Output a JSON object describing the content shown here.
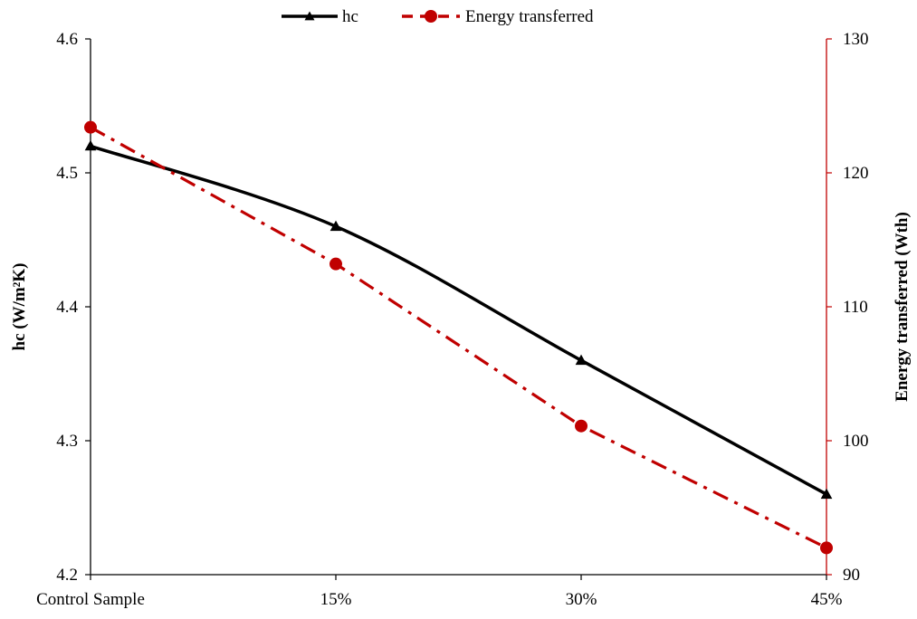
{
  "chart_data": {
    "type": "line",
    "title": "",
    "categories": [
      "Control Sample",
      "15%",
      "30%",
      "45%"
    ],
    "xlabel": "",
    "y_left": {
      "label": "hc (W/m²K)",
      "lim": [
        4.2,
        4.6
      ],
      "ticks": [
        "4.2",
        "4.3",
        "4.4",
        "4.5",
        "4.6"
      ],
      "tick_values": [
        4.2,
        4.3,
        4.4,
        4.5,
        4.6
      ]
    },
    "y_right": {
      "label": "Energy transferred (Wth)",
      "lim": [
        90,
        130
      ],
      "ticks": [
        "90",
        "100",
        "110",
        "120",
        "130"
      ],
      "tick_values": [
        90,
        100,
        110,
        120,
        130
      ]
    },
    "series": [
      {
        "name": "hc",
        "axis": "left",
        "values": [
          4.52,
          4.46,
          4.36,
          4.26
        ],
        "color": "#000000",
        "style": "solid",
        "marker": "triangle"
      },
      {
        "name": "Energy transferred",
        "axis": "right",
        "values": [
          123.4,
          113.2,
          101.1,
          92.0
        ],
        "color": "#c00000",
        "style": "dash-dot",
        "marker": "circle"
      }
    ],
    "legend": {
      "position": "top-center"
    },
    "grid": false,
    "right_axis_color": "#c00000"
  }
}
